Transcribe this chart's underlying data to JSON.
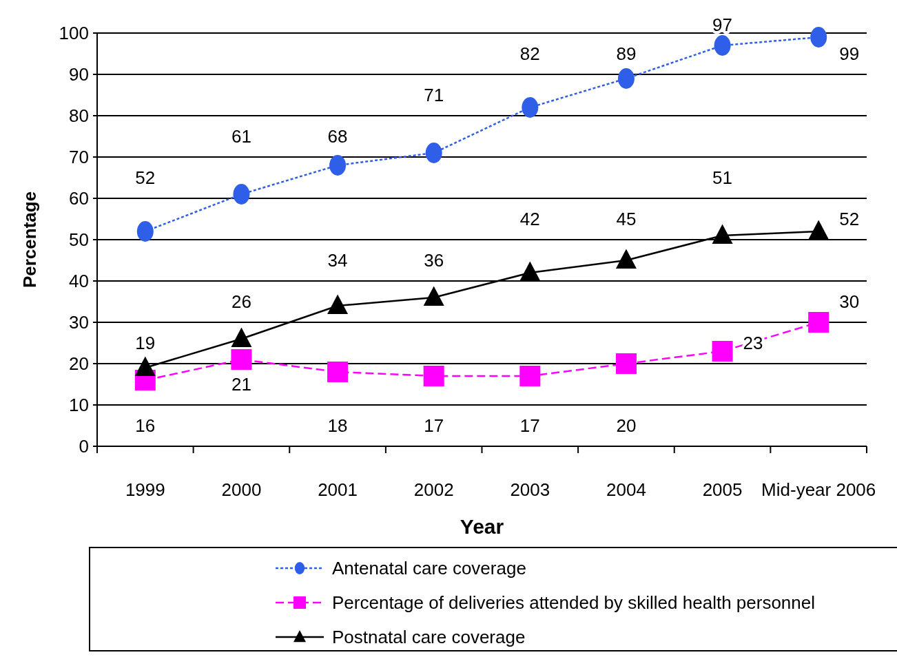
{
  "chart_data": {
    "type": "line",
    "xlabel": "Year",
    "ylabel": "Percentage",
    "categories": [
      "1999",
      "2000",
      "2001",
      "2002",
      "2003",
      "2004",
      "2005",
      "Mid-year 2006"
    ],
    "series": [
      {
        "name": "Antenatal care coverage",
        "color": "#2f5fe8",
        "marker": "circle",
        "line_style": "dotted",
        "values": [
          52,
          61,
          68,
          71,
          82,
          89,
          97,
          99
        ]
      },
      {
        "name": "Percentage of deliveries attended by skilled health personnel",
        "color": "#ff00ff",
        "marker": "square",
        "line_style": "dashed",
        "values": [
          16,
          21,
          18,
          17,
          17,
          20,
          23,
          30
        ]
      },
      {
        "name": "Postnatal care coverage",
        "color": "#000000",
        "marker": "triangle",
        "line_style": "solid",
        "values": [
          19,
          26,
          34,
          36,
          42,
          45,
          51,
          52
        ]
      }
    ],
    "ylim": [
      0,
      100
    ],
    "yticks": [
      0,
      10,
      20,
      30,
      40,
      50,
      60,
      70,
      80,
      90,
      100
    ],
    "grid": "y",
    "legend": "bottom",
    "data_labels": true
  }
}
